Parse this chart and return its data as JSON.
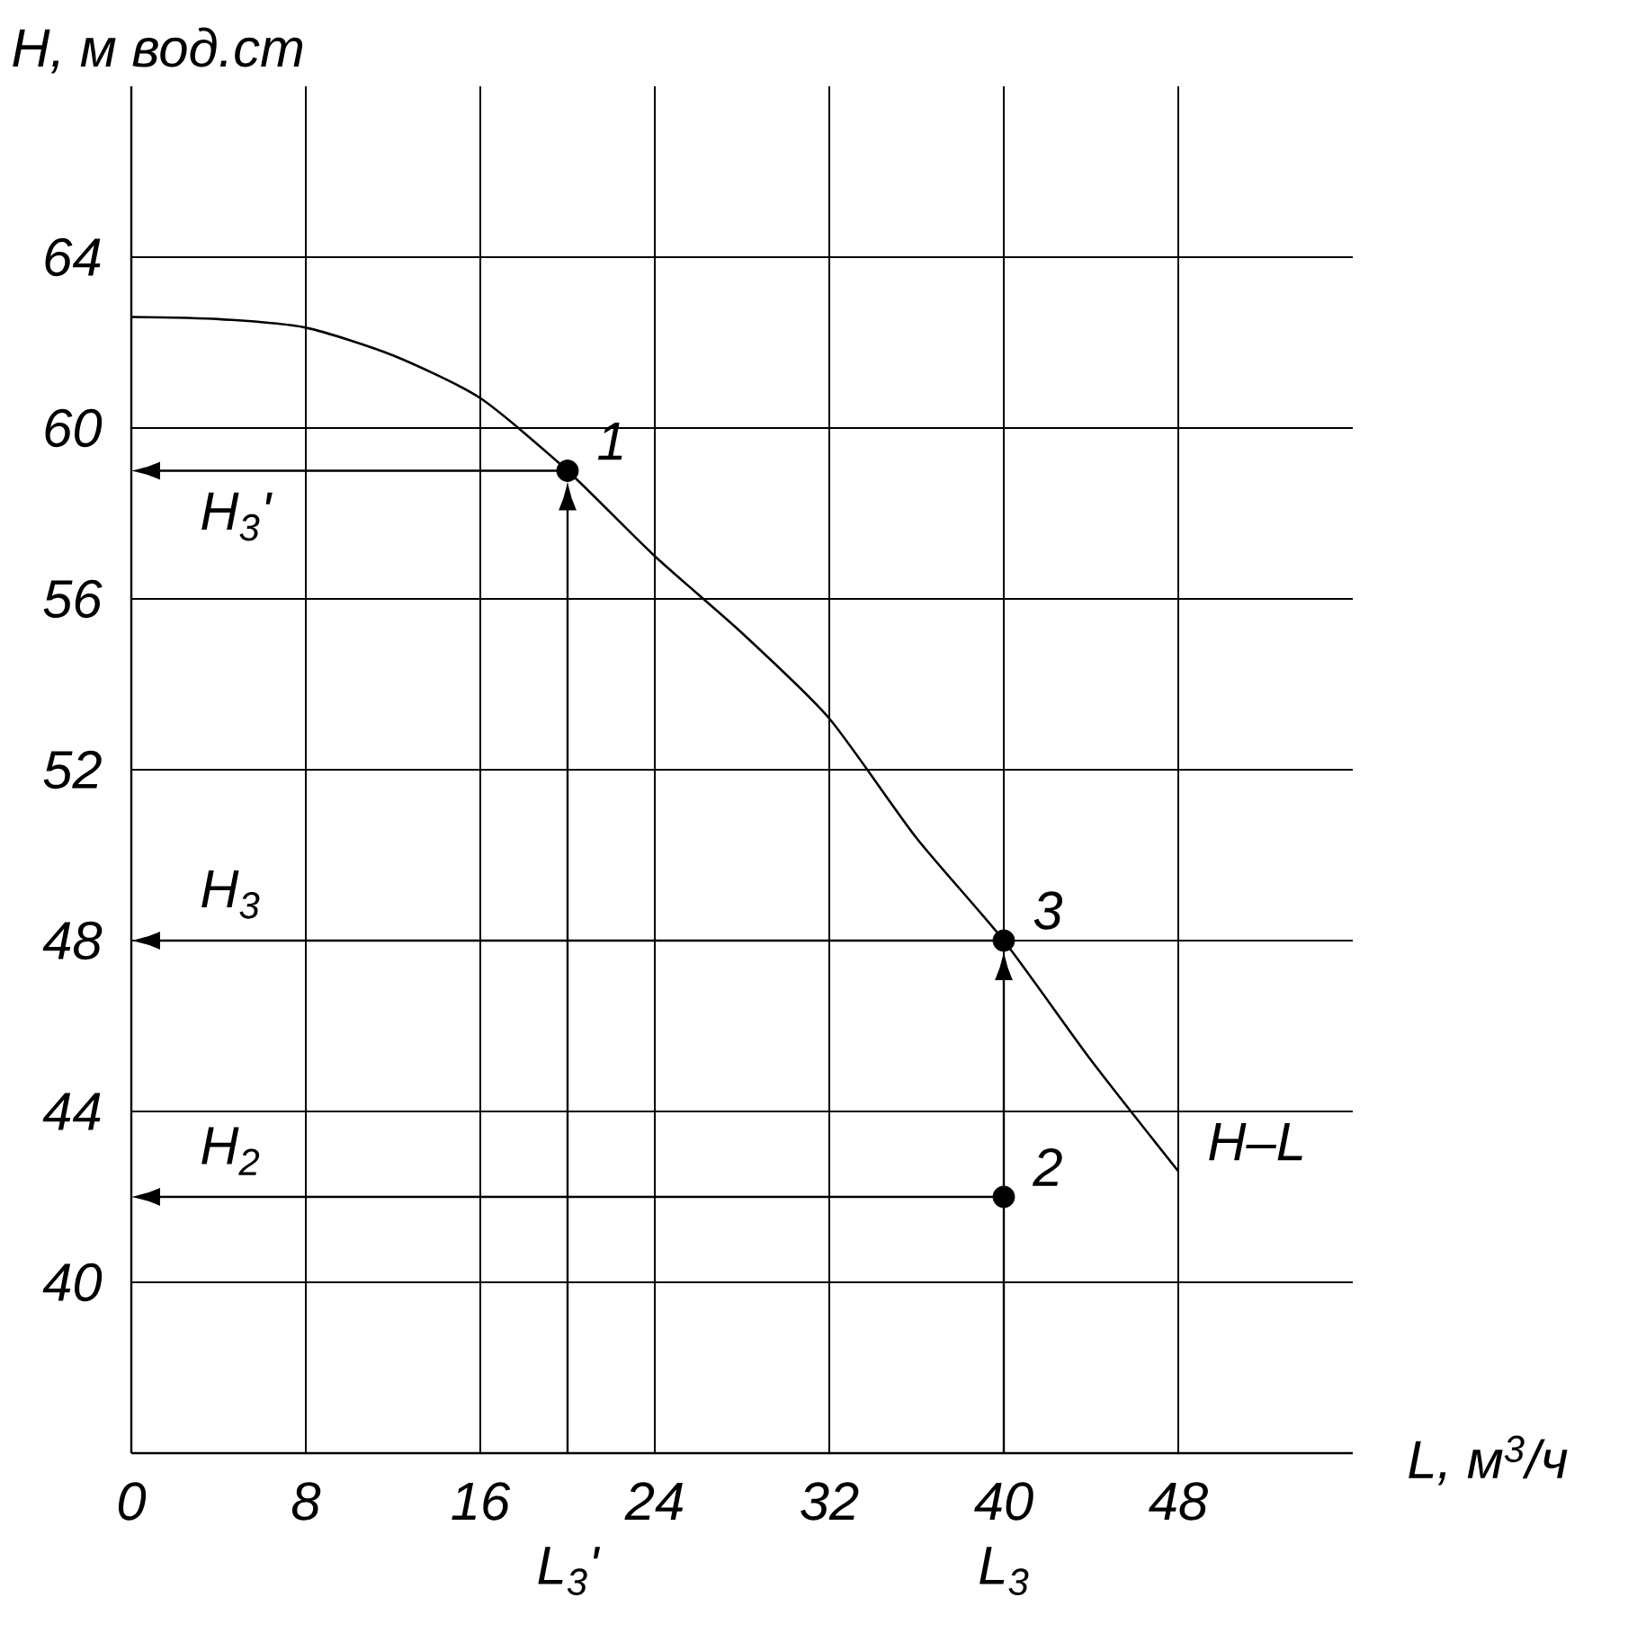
{
  "chart_data": {
    "type": "line",
    "xlabel": "L, м$^{3}$/ч",
    "ylabel": "H, м вод.ст",
    "xlim": [
      0,
      56
    ],
    "ylim": [
      36,
      68
    ],
    "xticks": [
      0,
      8,
      16,
      24,
      32,
      40,
      48
    ],
    "yticks": [
      40,
      44,
      48,
      52,
      56,
      60,
      64
    ],
    "grid": true,
    "series": [
      {
        "color": "#000000",
        "marker": "none",
        "x": [
          0,
          4,
          8,
          12,
          16,
          20,
          24,
          28,
          32,
          36,
          40,
          44,
          48
        ],
        "values": [
          62.6,
          62.55,
          62.35,
          61.7,
          60.7,
          59,
          57.0,
          55.2,
          53.2,
          50.4,
          48,
          45.2,
          42.6
        ]
      },
      {
        "type": "scatter",
        "color": "#000000",
        "marker": "circle",
        "x": [
          20,
          40,
          40
        ],
        "values": [
          59,
          48,
          42
        ]
      }
    ],
    "annotations": [
      {
        "text": "1",
        "x": 20,
        "y": 59
      },
      {
        "text": "3",
        "x": 40,
        "y": 48
      },
      {
        "text": "2",
        "x": 40,
        "y": 42
      },
      {
        "text": "H–L",
        "x": 48,
        "y": 42.6
      },
      "H$_{3}$'",
      "H$_{3}$",
      "H$_{2}$",
      "L$_{3}$'",
      "L$_{3}$"
    ]
  }
}
